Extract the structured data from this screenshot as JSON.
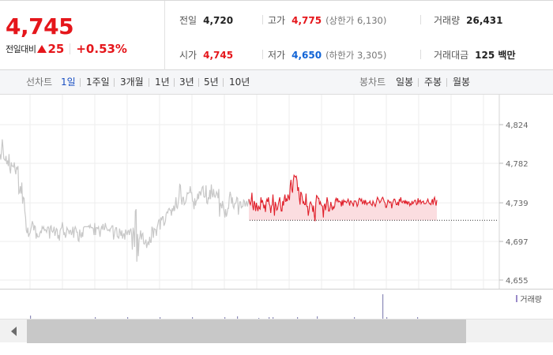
{
  "quote": {
    "price": "4,745",
    "change_label": "전일대비",
    "change_value": "25",
    "change_pct": "+0.53%",
    "stats": {
      "prev_close": {
        "label": "전일",
        "value": "4,720"
      },
      "open": {
        "label": "시가",
        "value": "4,745"
      },
      "high": {
        "label": "고가",
        "value": "4,775",
        "extra": "(상한가 6,130)"
      },
      "low": {
        "label": "저가",
        "value": "4,650",
        "extra": "(하한가 3,305)"
      },
      "volume": {
        "label": "거래량",
        "value": "26,431"
      },
      "trade_value": {
        "label": "거래대금",
        "value": "125 백만"
      }
    }
  },
  "toolbar": {
    "line_chart_label": "선차트",
    "periods": [
      "1일",
      "1주일",
      "3개월",
      "1년",
      "3년",
      "5년",
      "10년"
    ],
    "active_period": "1일",
    "candle_chart_label": "봉차트",
    "candle_periods": [
      "일봉",
      "주봉",
      "월봉"
    ]
  },
  "chart_data": {
    "type": "line",
    "y_ticks": [
      "4,824",
      "4,782",
      "4,739",
      "4,697",
      "4,655"
    ],
    "ylim": [
      4655,
      4824
    ],
    "reference_value": 4720,
    "series": [
      {
        "values": [
          4792,
          4786,
          4795,
          4808,
          4799,
          4787,
          4786,
          4785,
          4790,
          4781,
          4785,
          4779,
          4792,
          4776,
          4771,
          4783,
          4779,
          4779,
          4778,
          4783,
          4775,
          4770,
          4778,
          4776,
          4779,
          4749,
          4750,
          4757,
          4749,
          4761,
          4738,
          4745,
          4744,
          4730,
          4723,
          4709,
          4706,
          4712,
          4702,
          4705,
          4706,
          4710,
          4714,
          4719,
          4716,
          4709,
          4714,
          4713,
          4700,
          4706,
          4702,
          4702,
          4702,
          4706,
          4708,
          4706,
          4713,
          4711,
          4713,
          4709,
          4710,
          4709,
          4707,
          4712,
          4713,
          4711,
          4700,
          4713,
          4714,
          4708,
          4707,
          4709,
          4713,
          4703,
          4707,
          4711,
          4710,
          4700,
          4704,
          4698,
          4709,
          4711,
          4712,
          4718,
          4711,
          4704,
          4707,
          4701,
          4704,
          4712,
          4710,
          4709,
          4705,
          4709,
          4709,
          4704,
          4707,
          4713,
          4701,
          4710,
          4713,
          4711,
          4707,
          4707,
          4698,
          4697,
          4710,
          4704,
          4701,
          4707,
          4702,
          4712,
          4713,
          4713,
          4713,
          4713,
          4713,
          4713,
          4714,
          4712,
          4715,
          4712,
          4712,
          4712,
          4711,
          4704,
          4717,
          4704,
          4712,
          4712,
          4711,
          4713,
          4708,
          4702,
          4709,
          4713,
          4711,
          4716,
          4710,
          4710,
          4717,
          4713,
          4711,
          4709,
          4709,
          4710,
          4708,
          4711,
          4712,
          4714,
          4714,
          4699,
          4704,
          4709,
          4712,
          4712,
          4702,
          4702,
          4700,
          4711,
          4707,
          4703,
          4709,
          4700,
          4704,
          4706,
          4699,
          4710,
          4707,
          4704,
          4708,
          4709,
          4704,
          4709,
          4711,
          4705,
          4688,
          4712,
          4707,
          4691,
          4730,
          4732,
          4675,
          4705,
          4681,
          4699,
          4702,
          4709,
          4699,
          4705,
          4706,
          4695,
          4694,
          4696,
          4699,
          4690,
          4694,
          4697,
          4693,
          4702,
          4696,
          4696,
          4713,
          4711,
          4701,
          4711,
          4710,
          4710,
          4703,
          4712,
          4716,
          4720,
          4721,
          4710,
          4723,
          4720,
          4724,
          4724,
          4714,
          4716,
          4719,
          4727,
          4729,
          4728,
          4732,
          4733,
          4731,
          4731,
          4725,
          4733,
          4730,
          4736,
          4730,
          4736,
          4745,
          4734,
          4733,
          4739,
          4745,
          4759,
          4758,
          4743,
          4737,
          4745,
          4745,
          4737,
          4738,
          4740,
          4744,
          4750,
          4749,
          4750,
          4750,
          4757,
          4750,
          4750,
          4741,
          4740,
          4732,
          4744,
          4736,
          4741,
          4742,
          4749,
          4743,
          4751,
          4751,
          4747,
          4752,
          4756,
          4757,
          4746,
          4745,
          4746,
          4758,
          4739,
          4738,
          4745,
          4743,
          4753,
          4743,
          4759,
          4749,
          4745,
          4754,
          4747,
          4745,
          4747,
          4751,
          4749,
          4744,
          4754,
          4724,
          4739,
          4737,
          4733,
          4741,
          4735,
          4730,
          4723,
          4732,
          4724,
          4727,
          4733,
          4733,
          4745,
          4751,
          4747,
          4738,
          4745,
          4735,
          4733,
          4738,
          4738,
          4740,
          4745,
          4744,
          4726,
          4735,
          4740,
          4740,
          4733,
          4735,
          4735,
          4742,
          4741,
          4735,
          4738,
          4741,
          4735,
          4739,
          4743,
          4739,
          4737,
          4741,
          4750,
          4736,
          4731,
          4741,
          4738,
          4730,
          4739,
          4734,
          4730,
          4736,
          4733,
          4732,
          4745,
          4739,
          4742,
          4738,
          4733,
          4737,
          4729,
          4740,
          4743,
          4740,
          4745,
          4738,
          4736,
          4728,
          4735,
          4737,
          4748,
          4736,
          4725,
          4740,
          4737,
          4731,
          4732,
          4737,
          4741,
          4745,
          4737,
          4730,
          4730,
          4741,
          4736,
          4744,
          4748,
          4740,
          4743,
          4741,
          4748,
          4745,
          4742,
          4758,
          4764,
          4754,
          4750,
          4763,
          4769,
          4768,
          4767,
          4768,
          4763,
          4752,
          4756,
          4745,
          4737,
          4751,
          4749,
          4745,
          4738,
          4740,
          4737,
          4737,
          4749,
          4735,
          4735,
          4725,
          4731,
          4738,
          4740,
          4738,
          4736,
          4729,
          4736,
          4725,
          4719,
          4739,
          4747,
          4746,
          4744,
          4744,
          4737,
          4740,
          4737,
          4736,
          4735,
          4723,
          4736,
          4738,
          4731,
          4737,
          4745,
          4740,
          4730,
          4730,
          4734,
          4740,
          4735,
          4731,
          4735,
          4733,
          4735,
          4742,
          4744,
          4741,
          4744,
          4740,
          4741,
          4740,
          4740,
          4735,
          4742,
          4736,
          4742,
          4740,
          4741,
          4740,
          4739,
          4741,
          4743,
          4740,
          4736,
          4741,
          4741,
          4739,
          4738,
          4735,
          4741,
          4741,
          4741,
          4739,
          4735,
          4737,
          4742,
          4744,
          4743,
          4741,
          4743,
          4738,
          4739,
          4742,
          4737,
          4742,
          4739,
          4737,
          4739,
          4739,
          4739,
          4741,
          4738,
          4737,
          4736,
          4741,
          4739,
          4737,
          4735,
          4738,
          4742,
          4745,
          4743,
          4742,
          4739,
          4740,
          4742,
          4744,
          4745,
          4743,
          4740,
          4739,
          4734,
          4734,
          4738,
          4742,
          4741,
          4739,
          4740,
          4740,
          4733,
          4738,
          4741,
          4743,
          4743,
          4740,
          4737,
          4737,
          4740,
          4736,
          4743,
          4741,
          4745,
          4740,
          4739,
          4741,
          4741,
          4738,
          4742,
          4738,
          4741,
          4737,
          4740,
          4740,
          4736,
          4738,
          4737,
          4741,
          4738,
          4739,
          4741,
          4742,
          4741,
          4737,
          4738,
          4744,
          4739,
          4741,
          4742,
          4738,
          4740,
          4740,
          4741,
          4738,
          4738,
          4738,
          4739,
          4741,
          4743,
          4740,
          4738,
          4738,
          4737,
          4740,
          4743,
          4737,
          4743,
          4745,
          4740,
          4736,
          4742
        ]
      }
    ]
  },
  "volume": {
    "legend_label": "거래량"
  },
  "colors": {
    "up": "#e5161b",
    "down": "#1164d6",
    "prev_line": "#c8c8c8",
    "today_line": "#e01f2a",
    "today_fill": "#fbdde0"
  }
}
